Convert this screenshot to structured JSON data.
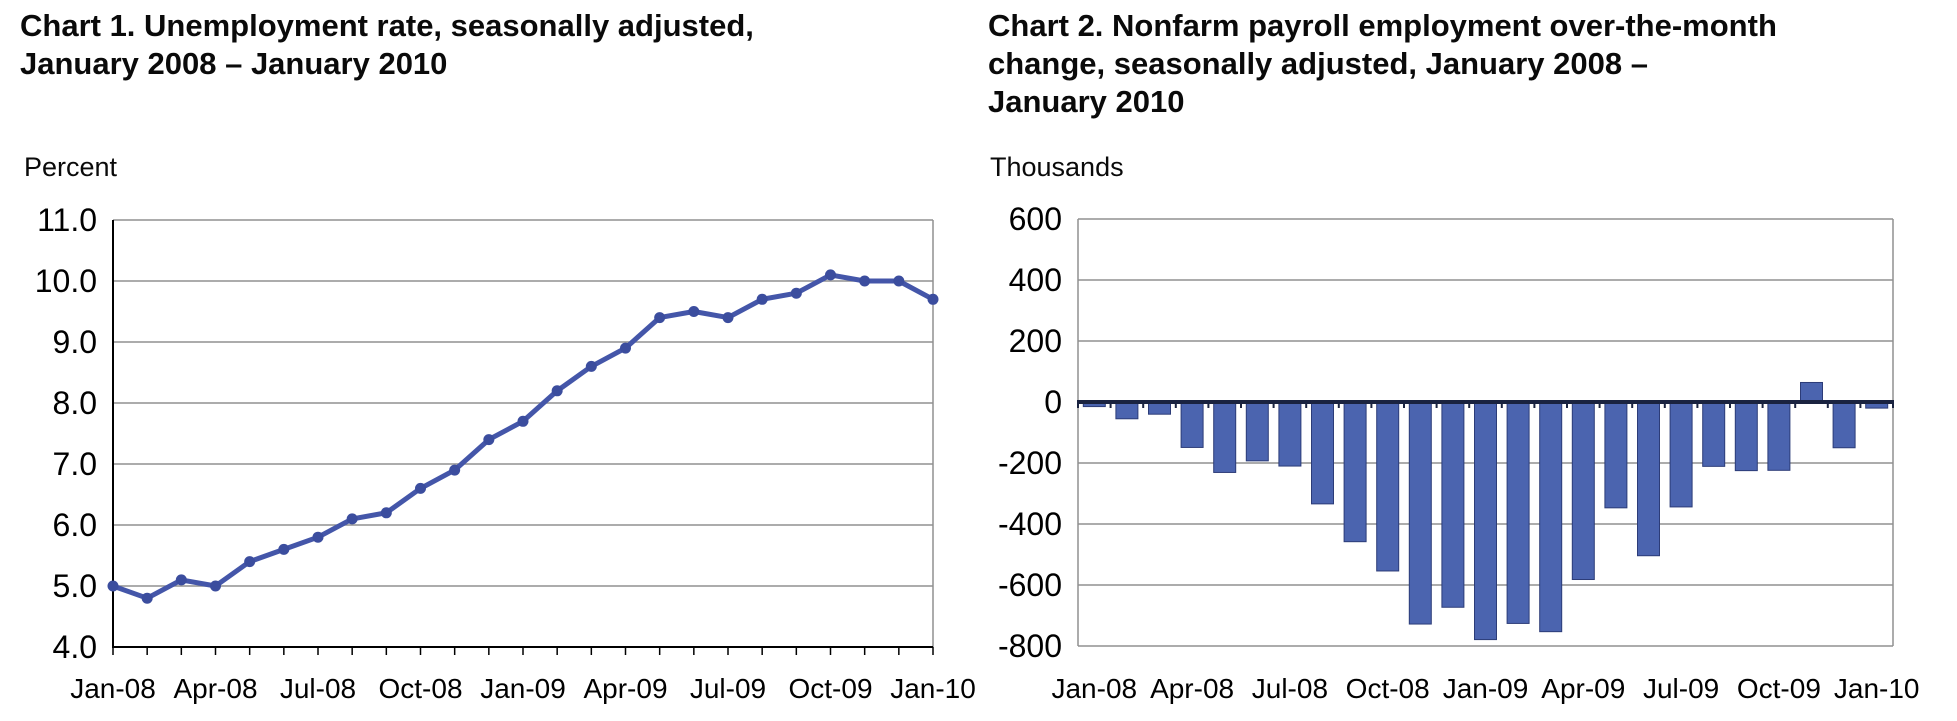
{
  "page": {
    "background": "#ffffff",
    "description_colors": {
      "grid": "#909090",
      "frame": "#909090",
      "axis": "#000000",
      "text": "#000000"
    }
  },
  "chart_data": [
    {
      "type": "line",
      "title": "Chart 1. Unemployment rate, seasonally adjusted, January 2008 – January 2010",
      "title_lines": [
        "Chart 1. Unemployment rate, seasonally adjusted,",
        "January 2008 – January 2010"
      ],
      "ylabel": "Percent",
      "xlabel": "",
      "categories": [
        "Jan-08",
        "Feb-08",
        "Mar-08",
        "Apr-08",
        "May-08",
        "Jun-08",
        "Jul-08",
        "Aug-08",
        "Sep-08",
        "Oct-08",
        "Nov-08",
        "Dec-08",
        "Jan-09",
        "Feb-09",
        "Mar-09",
        "Apr-09",
        "May-09",
        "Jun-09",
        "Jul-09",
        "Aug-09",
        "Sep-09",
        "Oct-09",
        "Nov-09",
        "Dec-09",
        "Jan-10"
      ],
      "values": [
        5.0,
        4.8,
        5.1,
        5.0,
        5.4,
        5.6,
        5.8,
        6.1,
        6.2,
        6.6,
        6.9,
        7.4,
        7.7,
        8.2,
        8.6,
        8.9,
        9.4,
        9.5,
        9.4,
        9.7,
        9.8,
        10.1,
        10.0,
        10.0,
        9.7
      ],
      "x_tick_labels": [
        "Jan-08",
        "Apr-08",
        "Jul-08",
        "Oct-08",
        "Jan-09",
        "Apr-09",
        "Jul-09",
        "Oct-09",
        "Jan-10"
      ],
      "x_tick_every": 3,
      "ylim": [
        4.0,
        11.0
      ],
      "y_tick_step": 1.0,
      "y_tick_labels": [
        "11.0",
        "10.0",
        "9.0",
        "8.0",
        "7.0",
        "6.0",
        "5.0",
        "4.0"
      ],
      "grid": true,
      "legend": "none",
      "line_color": "#4456A9",
      "marker_color": "#3B4D9E"
    },
    {
      "type": "bar",
      "title": "Chart 2. Nonfarm payroll employment over-the-month change, seasonally adjusted, January 2008 – January 2010",
      "title_lines": [
        "Chart 2. Nonfarm payroll employment over-the-month",
        "change, seasonally adjusted, January 2008 –",
        "January 2010"
      ],
      "ylabel": "Thousands",
      "xlabel": "",
      "categories": [
        "Jan-08",
        "Feb-08",
        "Mar-08",
        "Apr-08",
        "May-08",
        "Jun-08",
        "Jul-08",
        "Aug-08",
        "Sep-08",
        "Oct-08",
        "Nov-08",
        "Dec-08",
        "Jan-09",
        "Feb-09",
        "Mar-09",
        "Apr-09",
        "May-09",
        "Jun-09",
        "Jul-09",
        "Aug-09",
        "Sep-09",
        "Oct-09",
        "Nov-09",
        "Dec-09",
        "Jan-10"
      ],
      "values": [
        -15,
        -55,
        -40,
        -149,
        -231,
        -193,
        -210,
        -334,
        -458,
        -554,
        -728,
        -673,
        -779,
        -726,
        -753,
        -582,
        -347,
        -504,
        -344,
        -211,
        -225,
        -224,
        64,
        -150,
        -20
      ],
      "x_tick_labels": [
        "Jan-08",
        "Apr-08",
        "Jul-08",
        "Oct-08",
        "Jan-09",
        "Apr-09",
        "Jul-09",
        "Oct-09",
        "Jan-10"
      ],
      "x_tick_every": 3,
      "ylim": [
        -800,
        600
      ],
      "y_tick_step": 200,
      "y_tick_labels": [
        "600",
        "400",
        "200",
        "0",
        "-200",
        "-400",
        "-600",
        "-800"
      ],
      "grid": true,
      "legend": "none",
      "bar_color": "#4B64AF",
      "bar_edge_color": "#2C3C78",
      "zero_line_color": "#1A2340"
    }
  ]
}
